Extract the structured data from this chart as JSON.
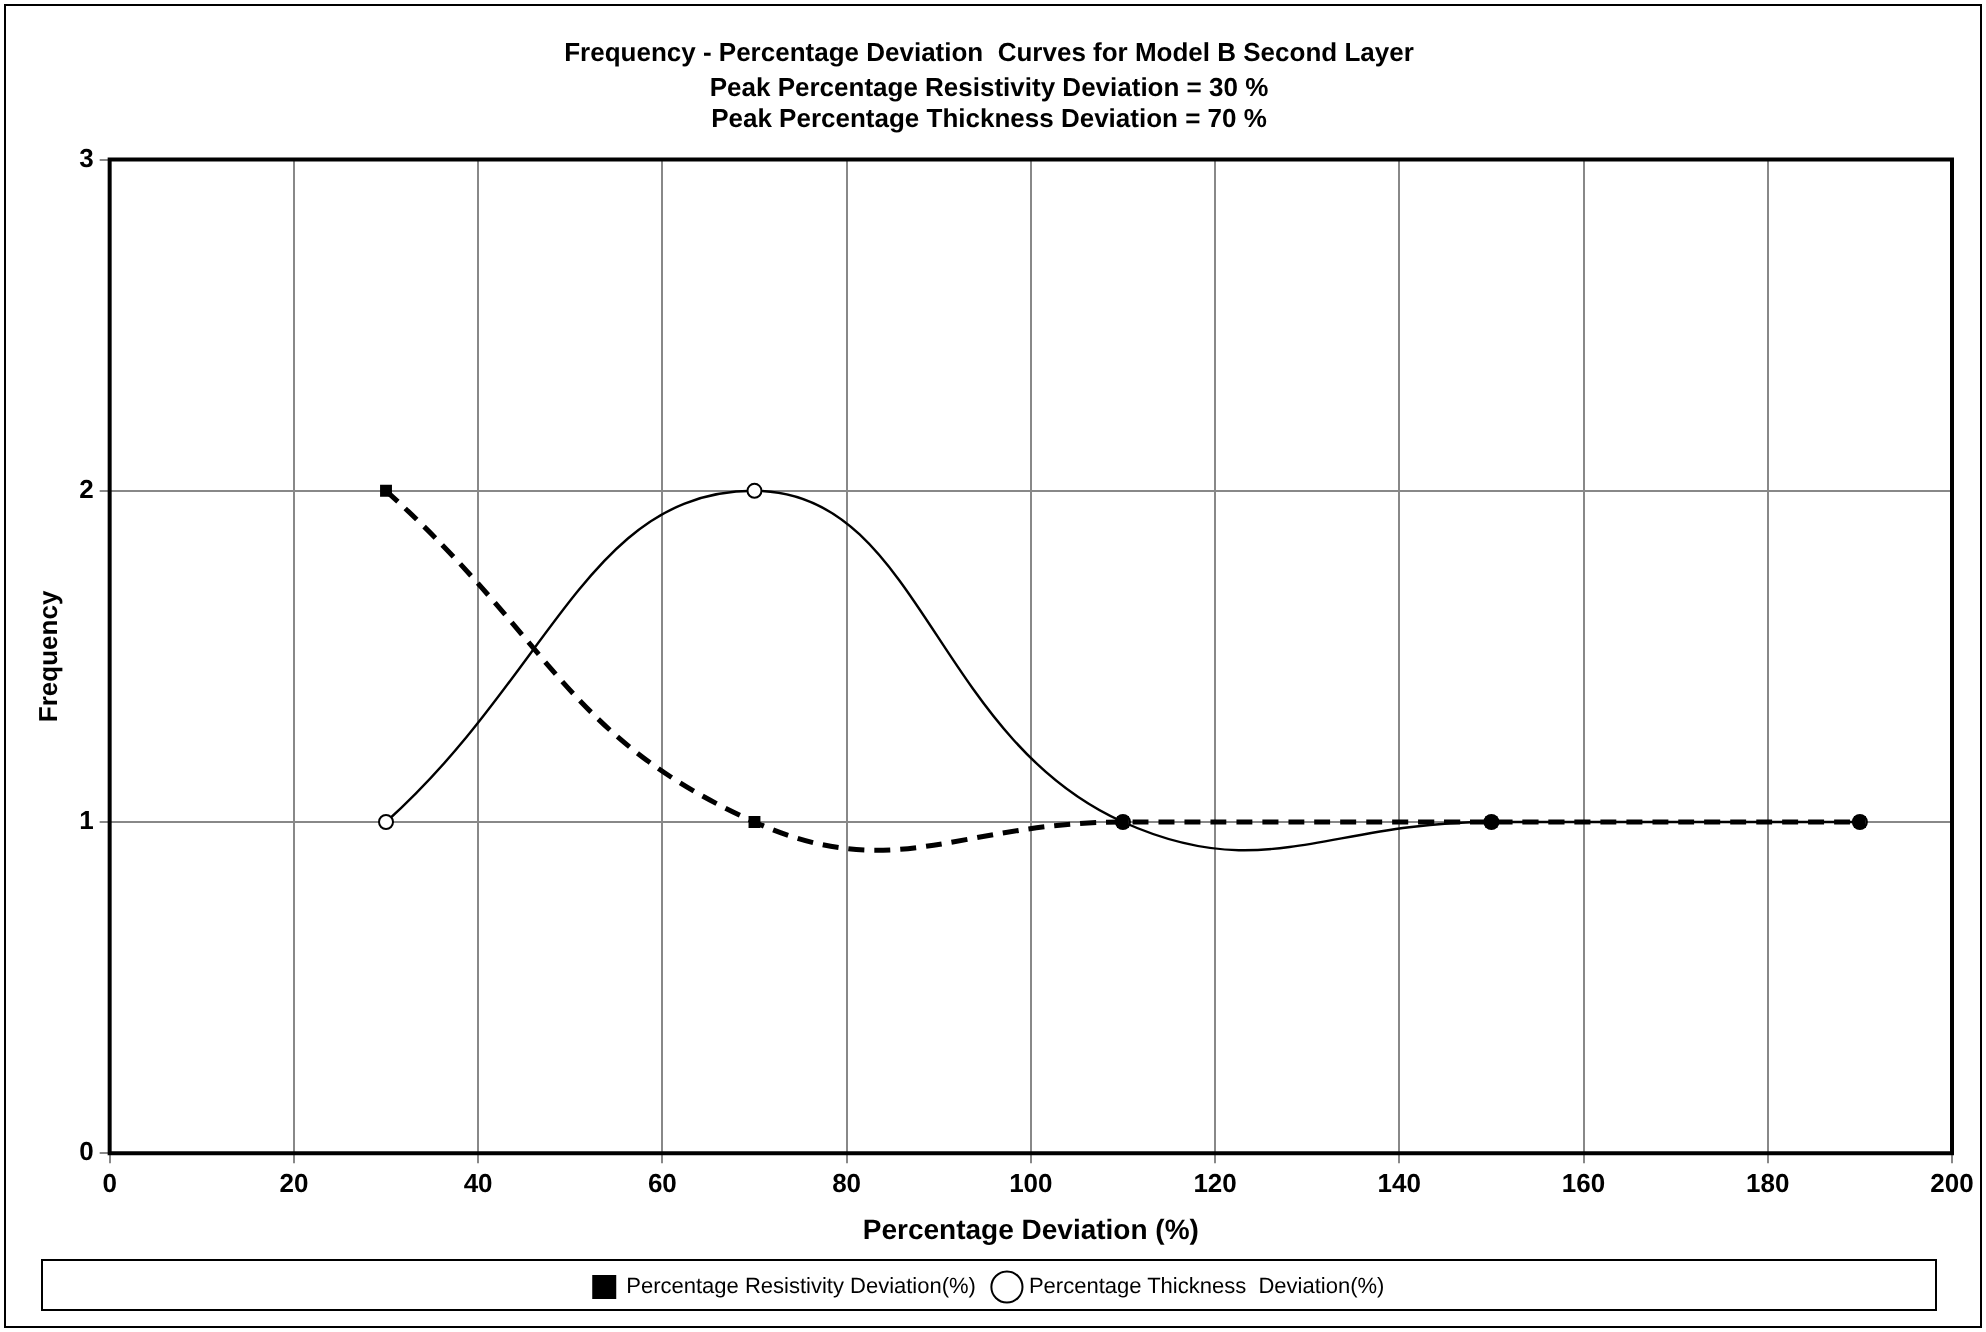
{
  "chart_data": {
    "type": "line",
    "title": "Frequency - Percentage Deviation  Curves for Model B Second Layer",
    "subtitle": "Peak Percentage Resistivity Deviation = 30 %\nPeak Percentage Thickness Deviation = 70 %",
    "xlabel": "Percentage Deviation (%)",
    "ylabel": "Frequency",
    "x": [
      30,
      70,
      110,
      150,
      190
    ],
    "series": [
      {
        "name": "Percentage Resistivity Deviation(%)",
        "color": "#000000",
        "values": [
          2,
          1,
          1,
          1,
          1
        ],
        "marker": "square",
        "line_style": "dashed"
      },
      {
        "name": "Percentage Thickness  Deviation(%)",
        "color": "#000000",
        "values": [
          1,
          2,
          1,
          1,
          1
        ],
        "marker": "circle",
        "line_style": "solid"
      }
    ],
    "xlim": [
      0,
      200
    ],
    "xticks": [
      0,
      20,
      40,
      60,
      80,
      100,
      120,
      140,
      160,
      180,
      200
    ],
    "ylim": [
      0,
      3
    ],
    "yticks": [
      0,
      1,
      2,
      3
    ],
    "grid": true,
    "legend": "bottom"
  }
}
